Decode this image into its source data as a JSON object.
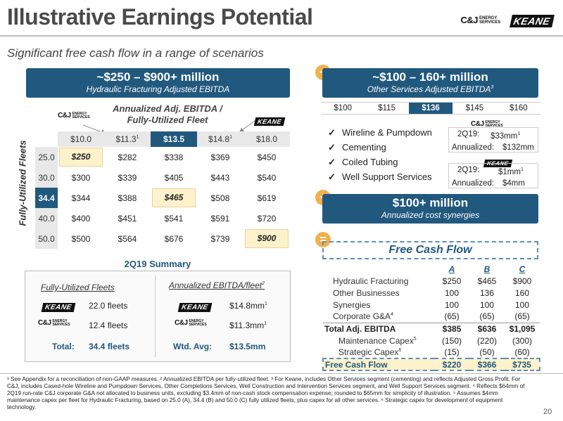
{
  "header": {
    "title": "Illustrative Earnings Potential",
    "subtitle": "Significant free cash flow in a range of scenarios",
    "logo_cj": "C&J",
    "logo_cj_tag": "ENERGY SERVICES",
    "logo_keane": "KEANE"
  },
  "left_banner": {
    "big": "~$250 – $900+ million",
    "small": "Hydraulic Fracturing Adjusted EBITDA"
  },
  "sensitivity": {
    "heading_line1": "Annualized Adj. EBITDA /",
    "heading_line2": "Fully-Utilized Fleet",
    "row_axis_label": "Fully-Utilized Fleets",
    "columns": [
      {
        "label": "$10.0",
        "sup": "",
        "selected": false
      },
      {
        "label": "$11.3",
        "sup": "1",
        "selected": false
      },
      {
        "label": "$13.5",
        "sup": "",
        "selected": true
      },
      {
        "label": "$14.8",
        "sup": "1",
        "selected": false
      },
      {
        "label": "$18.0",
        "sup": "",
        "selected": false
      }
    ],
    "rows": [
      {
        "fleets": "25.0",
        "selected": false,
        "values": [
          "$250",
          "$282",
          "$338",
          "$369",
          "$450"
        ],
        "highlight": 0
      },
      {
        "fleets": "30.0",
        "selected": false,
        "values": [
          "$300",
          "$339",
          "$405",
          "$443",
          "$540"
        ],
        "highlight": -1
      },
      {
        "fleets": "34.4",
        "selected": true,
        "values": [
          "$344",
          "$388",
          "$465",
          "$508",
          "$619"
        ],
        "highlight": 2
      },
      {
        "fleets": "40.0",
        "selected": false,
        "values": [
          "$400",
          "$451",
          "$541",
          "$591",
          "$720"
        ],
        "highlight": -1
      },
      {
        "fleets": "50.0",
        "selected": false,
        "values": [
          "$500",
          "$564",
          "$676",
          "$739",
          "$900"
        ],
        "highlight": 4
      }
    ]
  },
  "summary": {
    "title": "2Q19 Summary",
    "left_header": "Fully-Utilized Fleets",
    "right_header": "Annualized EBITDA/fleet",
    "right_header_sup": "2",
    "keane_fleets": "22.0 fleets",
    "cj_fleets": "12.4 fleets",
    "keane_ebitda": "$14.8mm",
    "keane_ebitda_sup": "1",
    "cj_ebitda": "$11.3mm",
    "cj_ebitda_sup": "1",
    "total_label": "Total:",
    "total_value": "34.4 fleets",
    "avg_label": "Wtd. Avg:",
    "avg_value": "$13.5mm"
  },
  "right_banner": {
    "big": "~$100 – 160+ million",
    "small": "Other Services Adjusted EBITDA",
    "small_sup": "3"
  },
  "other_scale": [
    {
      "label": "$100",
      "selected": false
    },
    {
      "label": "$115",
      "selected": false
    },
    {
      "label": "$136",
      "selected": true
    },
    {
      "label": "$145",
      "selected": false
    },
    {
      "label": "$160",
      "selected": false
    }
  ],
  "services": [
    "Wireline & Pumpdown",
    "Cementing",
    "Coiled Tubing",
    "Well Support Services"
  ],
  "cj_box": {
    "q_label": "2Q19:",
    "q_value": "$33mm",
    "q_sup": "1",
    "a_label": "Annualized:",
    "a_value": "$132mm"
  },
  "keane_box": {
    "q_label": "2Q19:",
    "q_value": "$1mm",
    "q_sup": "1",
    "a_label": "Annualized:",
    "a_value": "$4mm"
  },
  "plus_symbol": "+",
  "equals_symbol": "=",
  "synergy_banner": {
    "big": "$100+ million",
    "small": "Annualized cost synergies"
  },
  "fcf": {
    "title": "Free Cash Flow",
    "columns": [
      "A",
      "B",
      "C"
    ],
    "rows": [
      {
        "label": "Hydraulic Fracturing",
        "sup": "",
        "values": [
          "$250",
          "$465",
          "$900"
        ],
        "style": "indent"
      },
      {
        "label": "Other Businesses",
        "sup": "",
        "values": [
          "100",
          "136",
          "160"
        ],
        "style": "indent"
      },
      {
        "label": "Synergies",
        "sup": "",
        "values": [
          "100",
          "100",
          "100"
        ],
        "style": "indent"
      },
      {
        "label": "Corporate G&A",
        "sup": "4",
        "values": [
          "(65)",
          "(65)",
          "(65)"
        ],
        "style": "indent"
      },
      {
        "label": "Total Adj. EBITDA",
        "sup": "",
        "values": [
          "$385",
          "$636",
          "$1,095"
        ],
        "style": "total"
      },
      {
        "label": "Maintenance Capex",
        "sup": "5",
        "values": [
          "(150)",
          "(220)",
          "(300)"
        ],
        "style": "indent2"
      },
      {
        "label": "Strategic Capex",
        "sup": "6",
        "values": [
          "(15)",
          "(50)",
          "(60)"
        ],
        "style": "indent2"
      },
      {
        "label": "Free Cash Flow",
        "sup": "",
        "values": [
          "$220",
          "$366",
          "$735"
        ],
        "style": "final"
      }
    ]
  },
  "footnote": "¹ See Appendix for a reconciliation of non-GAAP measures. ² Annualized EBITDA per fully-utilized fleet. ³ For Keane, includes Other Services segment (cementing) and reflects Adjusted Gross Profit. For C&J, includes Cased-hole Wireline and Pumpdown Services, Other Completions Services, Well Construction and Intervention Services segment, and Well Support Services segment. ⁴ Reflects $64mm of 2Q19 run-rate C&J corporate G&A not allocated to business units, excluding $3.4mm of non-cash stock compensation expense; rounded to $65mm for simplicity of illustration. ⁵ Assumes $4mm maintenance capex per fleet for Hydraulic Fracturing, based on 25.0 (A), 34.4 (B) and 50.0 (C) fully utilized fleets, plus capex for all other services. ⁶ Strategic capex for development of equipment technology.",
  "page_number": "20",
  "colors": {
    "navy": "#21587e",
    "orange": "#f2b04a",
    "highlight": "#fdf2cc",
    "selected": "#21587e"
  }
}
